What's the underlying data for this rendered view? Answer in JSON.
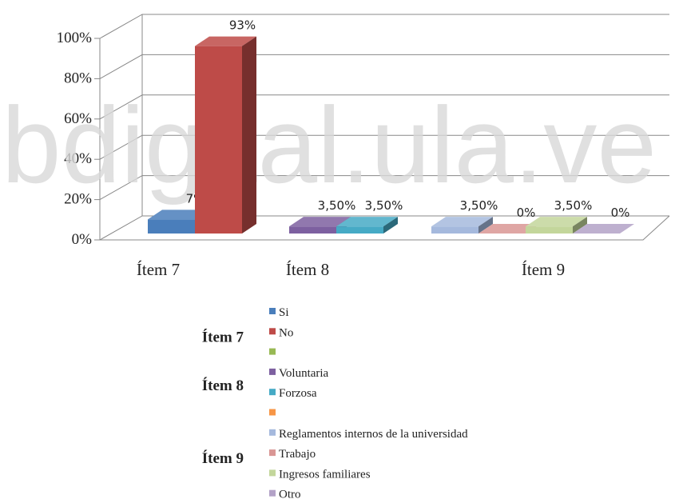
{
  "chart_data": {
    "type": "bar3d",
    "watermark": "bdigital.ula.ve",
    "categories": [
      "Ítem 7",
      "Ítem 8",
      "Ítem 9"
    ],
    "ylim": [
      0,
      100
    ],
    "yticks": [
      {
        "value": 0,
        "label": "0%"
      },
      {
        "value": 20,
        "label": "20%"
      },
      {
        "value": 40,
        "label": "40%"
      },
      {
        "value": 60,
        "label": "60%"
      },
      {
        "value": 80,
        "label": "80%"
      },
      {
        "value": 100,
        "label": "100%"
      }
    ],
    "grid": true,
    "series": [
      {
        "name": "Si",
        "color": "#4a7ebb",
        "values": [
          7,
          null,
          null
        ],
        "value_labels": [
          "7%",
          null,
          null
        ]
      },
      {
        "name": "No",
        "color": "#be4b48",
        "values": [
          93,
          null,
          null
        ],
        "value_labels": [
          "93%",
          null,
          null
        ]
      },
      {
        "color": "#98b954",
        "values": [
          null,
          null,
          null
        ]
      },
      {
        "name": "Voluntaria",
        "color": "#7d60a0",
        "values": [
          null,
          3.5,
          null
        ],
        "value_labels": [
          null,
          "3,50%",
          null
        ]
      },
      {
        "name": "Forzosa",
        "color": "#46aac5",
        "values": [
          null,
          3.5,
          null
        ],
        "value_labels": [
          null,
          "3,50%",
          null
        ]
      },
      {
        "color": "#f79646",
        "values": [
          null,
          null,
          null
        ]
      },
      {
        "name": "Reglamentos internos de la universidad",
        "color": "#a5b9dd",
        "values": [
          null,
          null,
          3.5
        ],
        "value_labels": [
          null,
          null,
          "3,50%"
        ]
      },
      {
        "name": "Trabajo",
        "color": "#d99694",
        "values": [
          null,
          null,
          0
        ],
        "value_labels": [
          null,
          null,
          "0%"
        ]
      },
      {
        "name": "Ingresos familiares",
        "color": "#c3d69b",
        "values": [
          null,
          null,
          3.5
        ],
        "value_labels": [
          null,
          null,
          "3,50%"
        ]
      },
      {
        "name": "Otro",
        "color": "#b3a2c7",
        "values": [
          null,
          null,
          0
        ],
        "value_labels": [
          null,
          null,
          "0%"
        ]
      }
    ]
  }
}
